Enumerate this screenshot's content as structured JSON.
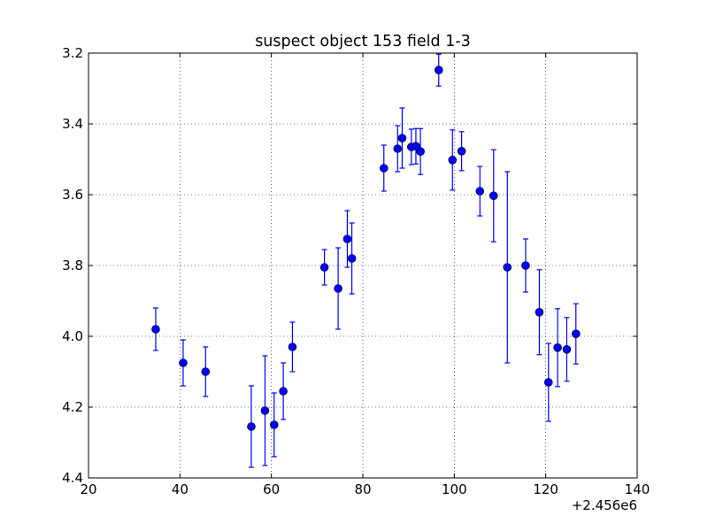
{
  "chart_data": {
    "type": "scatter",
    "title": "suspect object 153 field 1-3",
    "xlabel": "",
    "ylabel": "",
    "x_offset_label": "+2.456e6",
    "xlim": [
      20,
      140
    ],
    "ylim": [
      3.2,
      4.4
    ],
    "y_inverted": true,
    "grid": true,
    "x_ticks": [
      20,
      40,
      60,
      80,
      100,
      120,
      140
    ],
    "x_tick_labels": [
      "20",
      "40",
      "60",
      "80",
      "100",
      "120",
      "140"
    ],
    "y_ticks": [
      3.2,
      3.4,
      3.6,
      3.8,
      4.0,
      4.2,
      4.4
    ],
    "y_tick_labels": [
      "3.2",
      "3.4",
      "3.6",
      "3.8",
      "4.0",
      "4.2",
      "4.4"
    ],
    "marker_color": "#0000ff",
    "series": [
      {
        "points": [
          {
            "x": 34.7,
            "y": 3.98,
            "err": 0.06
          },
          {
            "x": 40.7,
            "y": 4.075,
            "err": 0.065
          },
          {
            "x": 45.6,
            "y": 4.1,
            "err": 0.07
          },
          {
            "x": 55.6,
            "y": 4.255,
            "err": 0.115
          },
          {
            "x": 58.6,
            "y": 4.21,
            "err": 0.155
          },
          {
            "x": 60.6,
            "y": 4.25,
            "err": 0.09
          },
          {
            "x": 62.6,
            "y": 4.155,
            "err": 0.08
          },
          {
            "x": 64.6,
            "y": 4.03,
            "err": 0.07
          },
          {
            "x": 71.6,
            "y": 3.805,
            "err": 0.05
          },
          {
            "x": 74.6,
            "y": 3.865,
            "err": 0.115
          },
          {
            "x": 76.6,
            "y": 3.725,
            "err": 0.08
          },
          {
            "x": 77.6,
            "y": 3.78,
            "err": 0.1
          },
          {
            "x": 84.6,
            "y": 3.525,
            "err": 0.065
          },
          {
            "x": 87.6,
            "y": 3.47,
            "err": 0.065
          },
          {
            "x": 88.6,
            "y": 3.44,
            "err": 0.085
          },
          {
            "x": 90.6,
            "y": 3.465,
            "err": 0.05
          },
          {
            "x": 91.6,
            "y": 3.463,
            "err": 0.05
          },
          {
            "x": 92.6,
            "y": 3.478,
            "err": 0.065
          },
          {
            "x": 96.6,
            "y": 3.248,
            "err": 0.045
          },
          {
            "x": 99.6,
            "y": 3.502,
            "err": 0.085
          },
          {
            "x": 101.6,
            "y": 3.477,
            "err": 0.055
          },
          {
            "x": 105.6,
            "y": 3.59,
            "err": 0.07
          },
          {
            "x": 108.6,
            "y": 3.603,
            "err": 0.13
          },
          {
            "x": 111.6,
            "y": 3.805,
            "err": 0.27
          },
          {
            "x": 115.6,
            "y": 3.8,
            "err": 0.075
          },
          {
            "x": 118.6,
            "y": 3.932,
            "err": 0.12
          },
          {
            "x": 120.6,
            "y": 4.13,
            "err": 0.11
          },
          {
            "x": 122.6,
            "y": 4.032,
            "err": 0.11
          },
          {
            "x": 124.6,
            "y": 4.037,
            "err": 0.09
          },
          {
            "x": 126.6,
            "y": 3.993,
            "err": 0.085
          }
        ]
      }
    ]
  }
}
